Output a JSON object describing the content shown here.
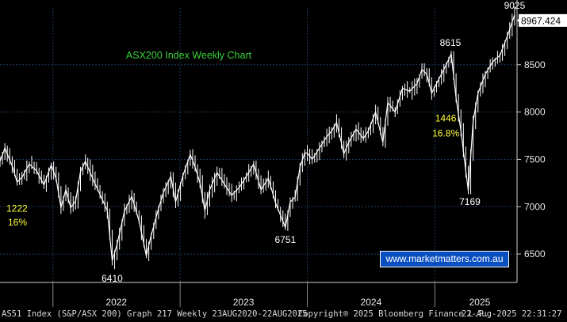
{
  "chart_data": {
    "type": "line",
    "title": "ASX200 Index Weekly Chart",
    "xlim": [
      "2021-08-02",
      "2025-08-25"
    ],
    "ylim": [
      6200,
      9100
    ],
    "grid": true,
    "x_tick_labels": [
      "2022",
      "2023",
      "2024",
      "2025"
    ],
    "y_tick_labels": [
      "6500",
      "7000",
      "7500",
      "8000",
      "8500"
    ],
    "last_price": "8967.424",
    "series": [
      {
        "points": [
          [
            "2021-08-02",
            7480
          ],
          [
            "2021-08-16",
            7620
          ],
          [
            "2021-09-06",
            7430
          ],
          [
            "2021-09-20",
            7260
          ],
          [
            "2021-10-04",
            7310
          ],
          [
            "2021-10-25",
            7450
          ],
          [
            "2021-11-15",
            7380
          ],
          [
            "2021-12-06",
            7230
          ],
          [
            "2021-12-27",
            7440
          ],
          [
            "2022-01-10",
            7300
          ],
          [
            "2022-01-24",
            6990
          ],
          [
            "2022-02-07",
            7180
          ],
          [
            "2022-02-21",
            6990
          ],
          [
            "2022-03-07",
            7060
          ],
          [
            "2022-03-21",
            7370
          ],
          [
            "2022-04-04",
            7480
          ],
          [
            "2022-04-25",
            7300
          ],
          [
            "2022-05-16",
            7130
          ],
          [
            "2022-06-06",
            6960
          ],
          [
            "2022-06-20",
            6430
          ],
          [
            "2022-07-04",
            6600
          ],
          [
            "2022-07-25",
            6950
          ],
          [
            "2022-08-15",
            7110
          ],
          [
            "2022-09-05",
            6850
          ],
          [
            "2022-09-26",
            6480
          ],
          [
            "2022-10-10",
            6700
          ],
          [
            "2022-10-31",
            6980
          ],
          [
            "2022-11-14",
            7150
          ],
          [
            "2022-12-05",
            7320
          ],
          [
            "2022-12-19",
            7050
          ],
          [
            "2023-01-09",
            7330
          ],
          [
            "2023-01-30",
            7550
          ],
          [
            "2023-02-13",
            7420
          ],
          [
            "2023-02-27",
            7250
          ],
          [
            "2023-03-13",
            6960
          ],
          [
            "2023-03-27",
            7180
          ],
          [
            "2023-04-17",
            7360
          ],
          [
            "2023-05-08",
            7240
          ],
          [
            "2023-05-29",
            7120
          ],
          [
            "2023-06-19",
            7200
          ],
          [
            "2023-07-10",
            7320
          ],
          [
            "2023-07-31",
            7450
          ],
          [
            "2023-08-21",
            7180
          ],
          [
            "2023-09-11",
            7300
          ],
          [
            "2023-10-02",
            7040
          ],
          [
            "2023-10-30",
            6780
          ],
          [
            "2023-11-13",
            7050
          ],
          [
            "2023-11-27",
            7100
          ],
          [
            "2023-12-11",
            7420
          ],
          [
            "2023-12-27",
            7590
          ],
          [
            "2024-01-15",
            7500
          ],
          [
            "2024-02-05",
            7620
          ],
          [
            "2024-02-26",
            7740
          ],
          [
            "2024-03-11",
            7800
          ],
          [
            "2024-03-25",
            7890
          ],
          [
            "2024-04-15",
            7560
          ],
          [
            "2024-04-29",
            7680
          ],
          [
            "2024-05-20",
            7820
          ],
          [
            "2024-06-10",
            7720
          ],
          [
            "2024-06-24",
            7800
          ],
          [
            "2024-07-15",
            8000
          ],
          [
            "2024-08-05",
            7680
          ],
          [
            "2024-08-19",
            8100
          ],
          [
            "2024-09-09",
            8000
          ],
          [
            "2024-09-30",
            8250
          ],
          [
            "2024-10-21",
            8220
          ],
          [
            "2024-11-11",
            8300
          ],
          [
            "2024-11-25",
            8450
          ],
          [
            "2024-12-09",
            8400
          ],
          [
            "2024-12-23",
            8200
          ],
          [
            "2025-01-13",
            8350
          ],
          [
            "2025-02-03",
            8500
          ],
          [
            "2025-02-17",
            8615
          ],
          [
            "2025-03-03",
            8150
          ],
          [
            "2025-03-17",
            7800
          ],
          [
            "2025-04-07",
            7169
          ],
          [
            "2025-04-21",
            7900
          ],
          [
            "2025-05-05",
            8200
          ],
          [
            "2025-05-26",
            8400
          ],
          [
            "2025-06-16",
            8530
          ],
          [
            "2025-07-07",
            8600
          ],
          [
            "2025-07-28",
            8800
          ],
          [
            "2025-08-18",
            9025
          ],
          [
            "2025-08-22",
            8967.424
          ]
        ]
      }
    ],
    "annotations": [
      {
        "text": "9025",
        "x": "2025-08-18",
        "y": 9025,
        "color": "#ffffff"
      },
      {
        "text": "8615",
        "x": "2025-02-17",
        "y": 8615,
        "color": "#ffffff"
      },
      {
        "text": "1446",
        "x": "2025-03-03",
        "y": 7900,
        "color": "#ffff3a"
      },
      {
        "text": "16.8%",
        "x": "2025-03-03",
        "y": 7740,
        "color": "#ffff3a"
      },
      {
        "text": "7169",
        "x": "2025-04-07",
        "y": 7169,
        "color": "#ffffff"
      },
      {
        "text": "6751",
        "x": "2023-10-30",
        "y": 6751,
        "color": "#ffffff"
      },
      {
        "text": "1222",
        "x": "2021-08-02",
        "y": 6950,
        "color": "#ffff3a"
      },
      {
        "text": "16%",
        "x": "2021-08-02",
        "y": 6800,
        "color": "#ffff3a"
      },
      {
        "text": "6410",
        "x": "2022-06-20",
        "y": 6410,
        "color": "#ffffff"
      }
    ],
    "colors": {
      "background": "#000000",
      "line": "#ffffff",
      "grid": "#1e3a5f",
      "title": "#3ad23a",
      "label_highlight": "#ffff3a"
    }
  },
  "watermark": "www.marketmatters.com.au",
  "footer": {
    "left": "AS51 Index (S&P/ASX 200) Graph 217  Weekly 23AUG2020-22AUG2025",
    "middle": "Copyright® 2025 Bloomberg Finance L.P.",
    "right": "22-Aug-2025 22:31:27"
  }
}
